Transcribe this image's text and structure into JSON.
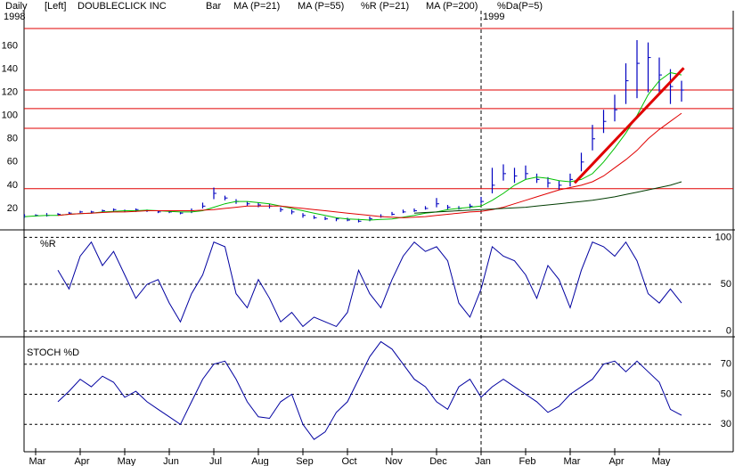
{
  "chart_data": {
    "type": "stock",
    "period": "Daily",
    "scale": "[Left]",
    "title": "DOUBLECLICK INC",
    "year_start": "1998",
    "year_break": {
      "x": 10,
      "label": "1999"
    },
    "xlim": [
      -0.26,
      15.66
    ],
    "xticks": [
      {
        "value": 0,
        "label": "Mar"
      },
      {
        "value": 1,
        "label": "Apr"
      },
      {
        "value": 2,
        "label": "May"
      },
      {
        "value": 3,
        "label": "Jun"
      },
      {
        "value": 4,
        "label": "Jul"
      },
      {
        "value": 5,
        "label": "Aug"
      },
      {
        "value": 6,
        "label": "Sep"
      },
      {
        "value": 7,
        "label": "Oct"
      },
      {
        "value": 8,
        "label": "Nov"
      },
      {
        "value": 9,
        "label": "Dec"
      },
      {
        "value": 10,
        "label": "Jan"
      },
      {
        "value": 11,
        "label": "Feb"
      },
      {
        "value": 12,
        "label": "Mar"
      },
      {
        "value": 13,
        "label": "Apr"
      },
      {
        "value": 14,
        "label": "May"
      }
    ],
    "x": [
      -0.25,
      0,
      0.25,
      0.5,
      0.75,
      1,
      1.25,
      1.5,
      1.75,
      2,
      2.25,
      2.5,
      2.75,
      3,
      3.25,
      3.5,
      3.75,
      4,
      4.25,
      4.5,
      4.75,
      5,
      5.25,
      5.5,
      5.75,
      6,
      6.25,
      6.5,
      6.75,
      7,
      7.25,
      7.5,
      7.75,
      8,
      8.25,
      8.5,
      8.75,
      9,
      9.25,
      9.5,
      9.75,
      10,
      10.25,
      10.5,
      10.75,
      11,
      11.25,
      11.5,
      11.75,
      12,
      12.25,
      12.5,
      12.75,
      13,
      13.25,
      13.5,
      13.75,
      14,
      14.25,
      14.5
    ],
    "panels": [
      {
        "kind": "price",
        "ylim": [
          0,
          175
        ],
        "yticks": [
          20,
          40,
          60,
          80,
          100,
          120,
          140,
          160
        ],
        "tick_side": "left",
        "grid": false,
        "levels": [
          37,
          89,
          106,
          122,
          175
        ],
        "level_color": "#e00000",
        "trendline": {
          "x": [
            12.1,
            14.55
          ],
          "values": [
            42,
            141
          ],
          "color": "#e00000"
        },
        "bars": {
          "name": "Bar",
          "color": "#0000c0",
          "high": [
            15,
            15,
            16,
            16,
            17,
            18,
            18,
            19,
            20,
            19,
            20,
            19,
            18,
            18,
            17,
            20,
            25,
            38,
            31,
            28,
            26,
            25,
            24,
            21,
            19,
            16,
            14,
            13,
            12,
            12,
            11,
            13,
            15,
            17,
            19,
            20,
            22,
            29,
            23,
            22,
            24,
            30,
            55,
            58,
            55,
            57,
            50,
            47,
            44,
            50,
            68,
            92,
            105,
            118,
            145,
            165,
            163,
            150,
            140,
            130
          ],
          "low": [
            12,
            13,
            13,
            14,
            15,
            16,
            16,
            17,
            17,
            17,
            17,
            17,
            16,
            16,
            15,
            16,
            20,
            28,
            27,
            24,
            22,
            21,
            20,
            17,
            15,
            12,
            11,
            10,
            9,
            9,
            8,
            9,
            12,
            14,
            16,
            17,
            19,
            21,
            19,
            19,
            20,
            24,
            33,
            44,
            42,
            45,
            42,
            38,
            36,
            39,
            52,
            70,
            85,
            95,
            110,
            115,
            120,
            120,
            110,
            112
          ],
          "close": [
            13,
            14,
            14,
            15,
            16,
            17,
            17,
            18,
            19,
            18,
            19,
            18,
            17,
            17,
            16,
            18,
            22,
            33,
            29,
            26,
            24,
            23,
            22,
            19,
            17,
            14,
            12,
            11,
            11,
            10,
            9,
            11,
            13,
            15,
            17,
            18,
            20,
            24,
            21,
            20,
            22,
            26,
            40,
            50,
            48,
            50,
            45,
            42,
            40,
            45,
            60,
            80,
            95,
            105,
            130,
            145,
            150,
            135,
            125,
            122
          ]
        },
        "series": [
          {
            "name": "MA (P=21)",
            "color": "#00c000",
            "values": [
              13,
              13.5,
              14,
              14,
              15,
              15.5,
              16,
              17,
              17.5,
              18,
              18,
              18.5,
              18,
              17.5,
              17,
              17,
              18,
              21,
              24,
              26,
              26,
              25,
              24,
              22,
              20,
              18,
              16,
              14,
              12,
              11,
              10.5,
              10,
              10.5,
              11,
              12.5,
              14,
              16,
              17,
              19,
              20,
              21,
              22,
              27,
              33,
              40,
              45,
              47,
              46,
              44,
              43,
              45,
              50,
              60,
              72,
              85,
              100,
              118,
              130,
              137,
              135
            ]
          },
          {
            "name": "MA (P=55)",
            "color": "#e00000",
            "values": [
              null,
              null,
              null,
              14,
              15,
              15.5,
              16,
              16.5,
              17,
              17,
              17.5,
              18,
              18,
              18,
              18,
              18,
              18.5,
              19,
              20,
              21,
              22,
              22,
              22,
              22,
              21,
              20,
              19,
              18,
              17,
              16,
              15,
              14,
              13,
              12.5,
              12,
              12.5,
              13,
              14,
              15,
              16,
              17,
              17.5,
              19,
              21,
              24,
              27,
              30,
              33,
              36,
              38,
              40,
              43,
              48,
              55,
              62,
              70,
              80,
              88,
              95,
              102
            ]
          },
          {
            "name": "MA (P=200)",
            "color": "#003c00",
            "values": [
              null,
              null,
              null,
              null,
              null,
              null,
              null,
              null,
              null,
              null,
              null,
              null,
              null,
              null,
              null,
              null,
              null,
              null,
              null,
              null,
              null,
              null,
              null,
              null,
              null,
              null,
              null,
              null,
              null,
              null,
              null,
              null,
              null,
              null,
              null,
              16,
              16.5,
              17,
              17.5,
              18,
              18.5,
              19,
              19.5,
              20,
              20.5,
              21,
              22,
              23,
              24,
              25,
              26,
              27,
              28.5,
              30,
              32,
              34,
              36,
              38,
              40,
              43
            ]
          }
        ]
      },
      {
        "kind": "oscillator",
        "label": "%R",
        "ylim": [
          -6,
          108
        ],
        "yticks": [
          0,
          50,
          100
        ],
        "tick_side": "right",
        "grid": true,
        "series": [
          {
            "name": "%R (P=21)",
            "color": "#0000a0",
            "values": [
              null,
              null,
              null,
              65,
              45,
              80,
              95,
              70,
              85,
              60,
              35,
              50,
              55,
              30,
              10,
              40,
              60,
              95,
              90,
              40,
              25,
              55,
              35,
              10,
              20,
              5,
              15,
              10,
              5,
              20,
              65,
              40,
              25,
              55,
              80,
              95,
              85,
              90,
              75,
              30,
              15,
              45,
              90,
              80,
              75,
              60,
              35,
              70,
              55,
              25,
              65,
              95,
              90,
              80,
              95,
              75,
              40,
              30,
              45,
              30
            ]
          }
        ]
      },
      {
        "kind": "oscillator",
        "label": "STOCH %D",
        "ylim": [
          13,
          87
        ],
        "yticks": [
          30,
          50,
          70
        ],
        "tick_side": "right",
        "grid": true,
        "series": [
          {
            "name": "%Da(P=5)",
            "color": "#0000a0",
            "values": [
              null,
              null,
              null,
              45,
              52,
              60,
              55,
              62,
              58,
              48,
              52,
              45,
              40,
              35,
              30,
              45,
              60,
              70,
              72,
              60,
              45,
              35,
              34,
              45,
              50,
              30,
              20,
              25,
              38,
              45,
              60,
              75,
              85,
              80,
              70,
              60,
              55,
              45,
              40,
              55,
              60,
              48,
              55,
              60,
              55,
              50,
              45,
              38,
              42,
              50,
              55,
              60,
              70,
              72,
              65,
              72,
              65,
              58,
              40,
              36
            ]
          }
        ]
      }
    ]
  }
}
